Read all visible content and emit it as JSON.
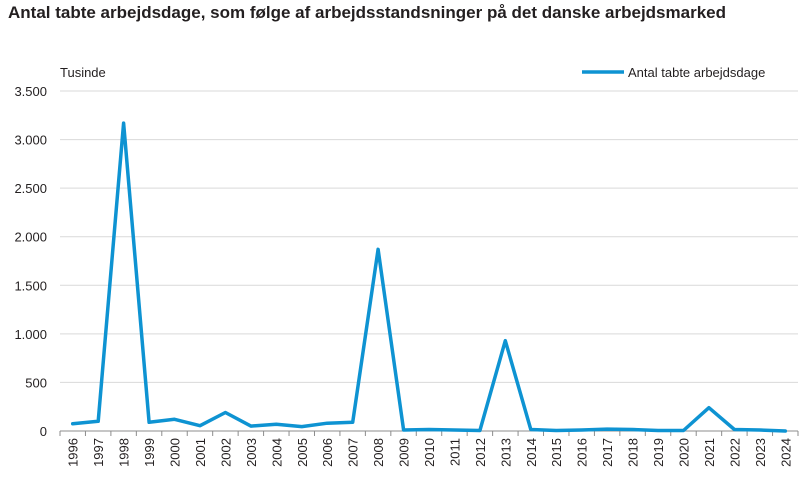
{
  "chart_data": {
    "type": "line",
    "title": "Antal tabte arbejdsdage, som følge af arbejdsstandsninger på det danske arbejdsmarked",
    "unit_label": "Tusinde",
    "xlabel": "",
    "ylabel": "",
    "ylim": [
      0,
      3500
    ],
    "yticks": [
      0,
      500,
      1000,
      1500,
      2000,
      2500,
      3000,
      3500
    ],
    "ytick_labels": [
      "0",
      "500",
      "1.000",
      "1.500",
      "2.000",
      "2.500",
      "3.000",
      "3.500"
    ],
    "grid": "horizontal",
    "legend_position": "top-right",
    "categories": [
      "1996",
      "1997",
      "1998",
      "1999",
      "2000",
      "2001",
      "2002",
      "2003",
      "2004",
      "2005",
      "2006",
      "2007",
      "2008",
      "2009",
      "2010",
      "2011",
      "2012",
      "2013",
      "2014",
      "2015",
      "2016",
      "2017",
      "2018",
      "2019",
      "2020",
      "2021",
      "2022",
      "2023",
      "2024"
    ],
    "series": [
      {
        "name": "Antal tabte arbejdsdage",
        "color": "#0e93d2",
        "values": [
          75,
          100,
          3170,
          90,
          120,
          55,
          190,
          50,
          70,
          45,
          80,
          90,
          1870,
          10,
          15,
          10,
          5,
          930,
          15,
          5,
          10,
          20,
          15,
          5,
          5,
          240,
          15,
          10,
          0
        ]
      }
    ]
  }
}
